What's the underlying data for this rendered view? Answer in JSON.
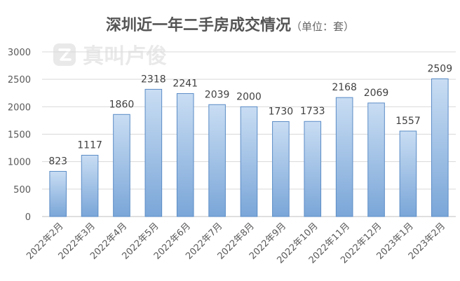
{
  "chart_data": {
    "type": "bar",
    "title": "深圳近一年二手房成交情况",
    "title_unit": "（单位：套）",
    "xlabel": "",
    "ylabel": "",
    "ylim": [
      0,
      3000
    ],
    "yticks": [
      0,
      500,
      1000,
      1500,
      2000,
      2500,
      3000
    ],
    "grid": true,
    "legend": "none",
    "categories": [
      "2022年2月",
      "2022年3月",
      "2022年4月",
      "2022年5月",
      "2022年6月",
      "2022年7月",
      "2022年8月",
      "2022年9月",
      "2022年10月",
      "2022年11月",
      "2022年12月",
      "2023年1月",
      "2023年2月"
    ],
    "values": [
      823,
      1117,
      1860,
      2318,
      2241,
      2039,
      2000,
      1730,
      1733,
      2168,
      2069,
      1557,
      2509
    ],
    "colors": {
      "bar_top": "#c9ddf3",
      "bar_bottom": "#7aa6d8",
      "bar_stroke": "#5b8cc6",
      "grid": "#d9d9d9",
      "axis": "#bfbfbf"
    }
  },
  "watermark": {
    "logo_text": "真叫卢俊",
    "icon": "z-logo-icon"
  }
}
